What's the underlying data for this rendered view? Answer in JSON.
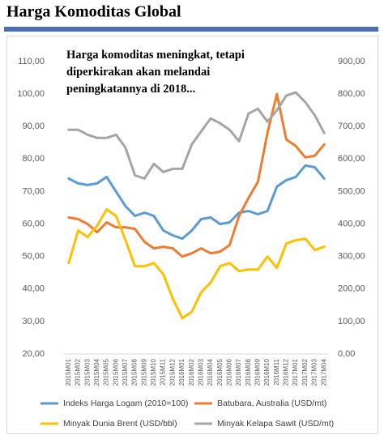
{
  "chart_data": {
    "type": "line",
    "title": "Harga Komoditas Global",
    "annotation": [
      "Harga komoditas meningkat, tetapi",
      "diperkirakan akan melandai",
      "peningkatannya di 2018..."
    ],
    "categories": [
      "2015M01",
      "2015M02",
      "2015M03",
      "2015M04",
      "2015M05",
      "2015M06",
      "2015M07",
      "2015M08",
      "2015M09",
      "2015M10",
      "2015M11",
      "2015M12",
      "2016M01",
      "2016M02",
      "2016M03",
      "2016M04",
      "2016M05",
      "2016M06",
      "2016M07",
      "2016M08",
      "2016M09",
      "2016M10",
      "2016M11",
      "2016M12",
      "2017M01",
      "2017M02",
      "2017M03",
      "2017M04"
    ],
    "series": [
      {
        "name": "Indeks Harga Logam (2010=100)",
        "color": "#5b9bd5",
        "axis": "y",
        "values": [
          74,
          72.5,
          72,
          72.5,
          74.5,
          70,
          65.5,
          62.5,
          63.5,
          62.5,
          58,
          56.5,
          55.5,
          58,
          61.5,
          62,
          60,
          60.5,
          63.5,
          64,
          63,
          64,
          71.5,
          73.5,
          74.5,
          78,
          77.5,
          74
        ]
      },
      {
        "name": "Batubara, Australia (USD/mt)",
        "color": "#ed7d31",
        "axis": "y2",
        "values": [
          420,
          415,
          400,
          375,
          405,
          390,
          390,
          385,
          345,
          325,
          330,
          325,
          300,
          310,
          325,
          310,
          315,
          335,
          425,
          480,
          530,
          680,
          800,
          660,
          640,
          605,
          610,
          645
        ]
      },
      {
        "name": "Minyak Dunia Brent (USD/bbl)",
        "color": "#ffc000",
        "axis": "y",
        "values": [
          48,
          58,
          56,
          59.5,
          64.5,
          62.5,
          55,
          47,
          47,
          48,
          44.5,
          37,
          31,
          33,
          39,
          42,
          47,
          48,
          45.5,
          46,
          46,
          50,
          46.5,
          54,
          55,
          55.5,
          52,
          53
        ]
      },
      {
        "name": "Minyak Kelapa Sawit (USD/mt)",
        "color": "#a5a5a5",
        "axis": "y2",
        "values": [
          690,
          690,
          675,
          665,
          665,
          675,
          635,
          550,
          540,
          585,
          560,
          570,
          570,
          645,
          685,
          725,
          710,
          690,
          655,
          740,
          755,
          715,
          750,
          795,
          805,
          775,
          735,
          680
        ]
      }
    ],
    "ylim": [
      20,
      110
    ],
    "yticks": [
      {
        "value": 20,
        "label": "20,00"
      },
      {
        "value": 30,
        "label": "30,00"
      },
      {
        "value": 40,
        "label": "40,00"
      },
      {
        "value": 50,
        "label": "50,00"
      },
      {
        "value": 60,
        "label": "60,00"
      },
      {
        "value": 70,
        "label": "70,00"
      },
      {
        "value": 80,
        "label": "80,00"
      },
      {
        "value": 90,
        "label": "90,00"
      },
      {
        "value": 100,
        "label": "100,00"
      },
      {
        "value": 110,
        "label": "110,00"
      }
    ],
    "y2lim": [
      0,
      900
    ],
    "y2ticks": [
      {
        "value": 0,
        "label": "0,00"
      },
      {
        "value": 100,
        "label": "100,00"
      },
      {
        "value": 200,
        "label": "200,00"
      },
      {
        "value": 300,
        "label": "300,00"
      },
      {
        "value": 400,
        "label": "400,00"
      },
      {
        "value": 500,
        "label": "500,00"
      },
      {
        "value": 600,
        "label": "600,00"
      },
      {
        "value": 700,
        "label": "700,00"
      },
      {
        "value": 800,
        "label": "800,00"
      },
      {
        "value": 900,
        "label": "900,00"
      }
    ],
    "grid": false
  }
}
